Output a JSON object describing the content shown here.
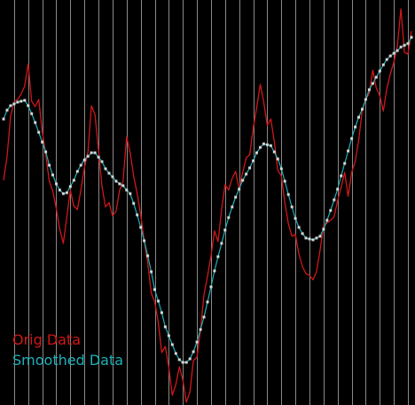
{
  "chart_data": {
    "type": "line",
    "title": "",
    "xlabel": "",
    "ylabel": "",
    "grid": true,
    "gridlines": "vertical",
    "x": [
      0,
      1,
      2,
      3,
      4,
      5,
      6,
      7,
      8,
      9,
      10,
      11,
      12,
      13,
      14,
      15,
      16,
      17,
      18,
      19,
      20,
      21,
      22,
      23,
      24,
      25,
      26,
      27,
      28,
      29,
      30,
      31,
      32,
      33,
      34,
      35,
      36,
      37,
      38,
      39,
      40,
      41,
      42,
      43,
      44,
      45,
      46,
      47,
      48,
      49,
      50,
      51,
      52,
      53,
      54,
      55,
      56,
      57,
      58,
      59,
      60,
      61,
      62,
      63,
      64,
      65,
      66,
      67,
      68,
      69,
      70,
      71,
      72,
      73,
      74,
      75,
      76,
      77,
      78,
      79,
      80,
      81,
      82,
      83,
      84,
      85,
      86,
      87,
      88,
      89,
      90,
      91,
      92,
      93,
      94,
      95,
      96,
      97,
      98,
      99,
      100,
      101,
      102,
      103,
      104,
      105,
      106,
      107,
      108,
      109,
      110,
      111,
      112,
      113,
      114,
      115,
      116
    ],
    "xlim": [
      0,
      116
    ],
    "ylim": [
      0,
      456
    ],
    "background": "#000000",
    "grid_color": "#8a8a8a",
    "legend": {
      "placement": "bottom-left",
      "items": [
        {
          "label": "Orig Data",
          "color": "#d01818"
        },
        {
          "label": "Smoothed Data",
          "color": "#20b0b8"
        }
      ]
    },
    "series": [
      {
        "name": "Orig Data",
        "color": "#d01818",
        "marker": "none",
        "values": [
          253,
          280,
          325,
          341,
          344,
          350,
          359,
          384,
          342,
          336,
          344,
          308,
          282,
          252,
          241,
          221,
          198,
          182,
          212,
          242,
          224,
          220,
          242,
          267,
          285,
          337,
          327,
          287,
          246,
          223,
          228,
          213,
          218,
          242,
          252,
          302,
          284,
          258,
          238,
          214,
          185,
          160,
          126,
          116,
          93,
          59,
          66,
          42,
          11,
          23,
          43,
          28,
          3,
          15,
          50,
          54,
          84,
          124,
          145,
          168,
          196,
          184,
          220,
          248,
          242,
          255,
          263,
          243,
          262,
          278,
          282,
          312,
          335,
          361,
          341,
          315,
          322,
          297,
          264,
          258,
          228,
          204,
          190,
          192,
          170,
          156,
          148,
          146,
          141,
          150,
          174,
          202,
          205,
          208,
          212,
          230,
          245,
          262,
          235,
          262,
          274,
          298,
          332,
          344,
          351,
          377,
          357,
          348,
          331,
          356,
          373,
          386,
          404,
          446,
          397,
          395,
          421
        ]
      },
      {
        "name": "Smoothed Data",
        "color": "#20b0b8",
        "marker": "square",
        "values": [
          322,
          332,
          337,
          339,
          341,
          342,
          343,
          337,
          328,
          318,
          307,
          296,
          285,
          270,
          259,
          249,
          242,
          238,
          239,
          246,
          253,
          263,
          270,
          276,
          280,
          284,
          284,
          279,
          274,
          266,
          261,
          257,
          252,
          249,
          247,
          242,
          238,
          227,
          214,
          200,
          185,
          168,
          150,
          130,
          117,
          104,
          88,
          78,
          68,
          58,
          51,
          48,
          48,
          52,
          60,
          71,
          85,
          99,
          116,
          133,
          151,
          167,
          182,
          197,
          211,
          223,
          234,
          243,
          253,
          260,
          267,
          275,
          284,
          290,
          294,
          293,
          292,
          285,
          277,
          266,
          252,
          237,
          223,
          210,
          200,
          193,
          188,
          187,
          186,
          188,
          190,
          198,
          208,
          219,
          231,
          243,
          258,
          272,
          286,
          300,
          313,
          324,
          333,
          344,
          355,
          362,
          369,
          376,
          383,
          389,
          393,
          396,
          399,
          403,
          405,
          407,
          414
        ]
      }
    ]
  }
}
